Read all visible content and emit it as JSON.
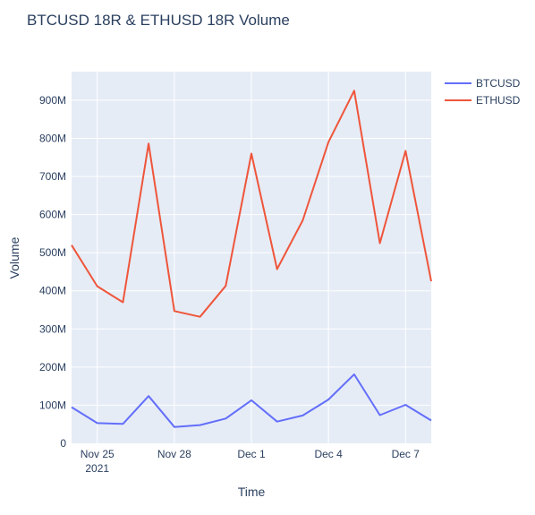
{
  "chart_data": {
    "type": "line",
    "title": "BTCUSD 18R & ETHUSD 18R Volume",
    "xlabel": "Time",
    "ylabel": "Volume",
    "ylim": [
      0,
      975000000
    ],
    "grid": true,
    "legend_position": "top-right",
    "x": [
      "2021-11-24",
      "2021-11-25",
      "2021-11-26",
      "2021-11-27",
      "2021-11-28",
      "2021-11-29",
      "2021-11-30",
      "2021-12-01",
      "2021-12-02",
      "2021-12-03",
      "2021-12-04",
      "2021-12-05",
      "2021-12-06",
      "2021-12-07",
      "2021-12-08"
    ],
    "x_ticks": [
      {
        "date": "2021-11-25",
        "label": "Nov 25",
        "sublabel": "2021"
      },
      {
        "date": "2021-11-28",
        "label": "Nov 28",
        "sublabel": ""
      },
      {
        "date": "2021-12-01",
        "label": "Dec 1",
        "sublabel": ""
      },
      {
        "date": "2021-12-04",
        "label": "Dec 4",
        "sublabel": ""
      },
      {
        "date": "2021-12-07",
        "label": "Dec 7",
        "sublabel": ""
      }
    ],
    "y_ticks": [
      {
        "value": 0,
        "label": "0"
      },
      {
        "value": 100000000,
        "label": "100M"
      },
      {
        "value": 200000000,
        "label": "200M"
      },
      {
        "value": 300000000,
        "label": "300M"
      },
      {
        "value": 400000000,
        "label": "400M"
      },
      {
        "value": 500000000,
        "label": "500M"
      },
      {
        "value": 600000000,
        "label": "600M"
      },
      {
        "value": 700000000,
        "label": "700M"
      },
      {
        "value": 800000000,
        "label": "800M"
      },
      {
        "value": 900000000,
        "label": "900M"
      }
    ],
    "series": [
      {
        "name": "BTCUSD",
        "color": "#636efa",
        "values": [
          95000000,
          53000000,
          51000000,
          124000000,
          43000000,
          48000000,
          65000000,
          113000000,
          57000000,
          73000000,
          115000000,
          181000000,
          74000000,
          101000000,
          60000000
        ]
      },
      {
        "name": "ETHUSD",
        "color": "#ef553b",
        "values": [
          520000000,
          412000000,
          370000000,
          786000000,
          347000000,
          332000000,
          413000000,
          760000000,
          457000000,
          585000000,
          790000000,
          925000000,
          525000000,
          767000000,
          425000000
        ]
      }
    ]
  }
}
